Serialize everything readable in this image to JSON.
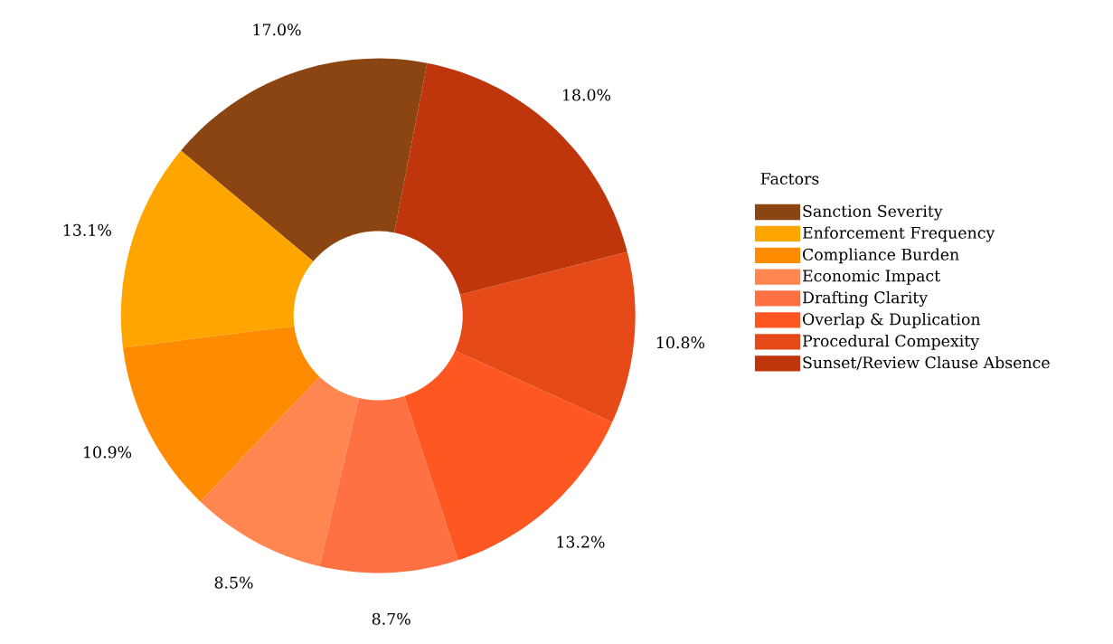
{
  "chart_data": {
    "type": "donut",
    "legend_title": "Factors",
    "legend": "right",
    "categories": [
      "Sanction Severity",
      "Enforcement Frequency",
      "Compliance Burden",
      "Economic Impact",
      "Drafting Clarity",
      "Overlap & Duplication",
      "Procedural Compexity",
      "Sunset/Review Clause Absence"
    ],
    "values": [
      17.0,
      13.1,
      10.9,
      8.5,
      8.7,
      13.2,
      10.8,
      18.0
    ],
    "colors": [
      "#8b4513",
      "#ffa500",
      "#ff8c00",
      "#ff8650",
      "#ff7043",
      "#ff5722",
      "#e64a19",
      "#bf360c"
    ],
    "value_labels": [
      "17.0%",
      "13.1%",
      "10.9%",
      "8.5%",
      "8.7%",
      "13.2%",
      "10.8%",
      "18.0%"
    ]
  }
}
